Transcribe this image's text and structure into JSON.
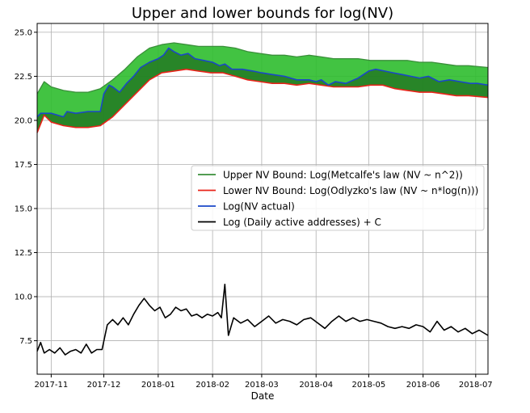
{
  "chart_data": {
    "type": "line",
    "title": "Upper and lower bounds for log(NV)",
    "xlabel": "Date",
    "ylabel": "",
    "xlim": [
      "2017-10-24",
      "2018-07-08"
    ],
    "ylim": [
      5.6,
      25.5
    ],
    "grid": true,
    "legend_position": "center-right",
    "x_ticks": [
      {
        "date": "2017-11-01",
        "label": "2017-11"
      },
      {
        "date": "2017-12-01",
        "label": "2017-12"
      },
      {
        "date": "2018-01-01",
        "label": "2018-01"
      },
      {
        "date": "2018-02-01",
        "label": "2018-02"
      },
      {
        "date": "2018-03-01",
        "label": "2018-03"
      },
      {
        "date": "2018-04-01",
        "label": "2018-04"
      },
      {
        "date": "2018-05-01",
        "label": "2018-05"
      },
      {
        "date": "2018-06-01",
        "label": "2018-06"
      },
      {
        "date": "2018-07-01",
        "label": "2018-07"
      }
    ],
    "y_ticks": [
      {
        "value": 7.5,
        "label": "7.5"
      },
      {
        "value": 10.0,
        "label": "10.0"
      },
      {
        "value": 12.5,
        "label": "12.5"
      },
      {
        "value": 15.0,
        "label": "15.0"
      },
      {
        "value": 17.5,
        "label": "17.5"
      },
      {
        "value": 20.0,
        "label": "20.0"
      },
      {
        "value": 22.5,
        "label": "22.5"
      },
      {
        "value": 25.0,
        "label": "25.0"
      }
    ],
    "series": [
      {
        "name": "Upper NV Bound: Log(Metcalfe's law (NV ~ n^2))",
        "color": "#3a8f3a",
        "fill_color": "#2ebd2e",
        "x": [
          "2017-10-24",
          "2017-10-28",
          "2017-11-01",
          "2017-11-08",
          "2017-11-15",
          "2017-11-22",
          "2017-11-29",
          "2017-12-06",
          "2017-12-13",
          "2017-12-20",
          "2017-12-27",
          "2018-01-03",
          "2018-01-10",
          "2018-01-17",
          "2018-01-24",
          "2018-01-31",
          "2018-02-07",
          "2018-02-14",
          "2018-02-21",
          "2018-02-28",
          "2018-03-07",
          "2018-03-14",
          "2018-03-21",
          "2018-03-28",
          "2018-04-04",
          "2018-04-11",
          "2018-04-18",
          "2018-04-25",
          "2018-05-02",
          "2018-05-09",
          "2018-05-16",
          "2018-05-23",
          "2018-05-30",
          "2018-06-06",
          "2018-06-13",
          "2018-06-20",
          "2018-06-27",
          "2018-07-08"
        ],
        "values": [
          21.5,
          22.2,
          21.9,
          21.7,
          21.6,
          21.6,
          21.8,
          22.3,
          22.9,
          23.6,
          24.1,
          24.3,
          24.4,
          24.3,
          24.2,
          24.2,
          24.2,
          24.1,
          23.9,
          23.8,
          23.7,
          23.7,
          23.6,
          23.7,
          23.6,
          23.5,
          23.5,
          23.5,
          23.4,
          23.4,
          23.4,
          23.4,
          23.3,
          23.3,
          23.2,
          23.1,
          23.1,
          23.0
        ]
      },
      {
        "name": "Lower NV Bound: Log(Odlyzko's law (NV ~ n*log(n)))",
        "color": "#e8241a",
        "x": [
          "2017-10-24",
          "2017-10-28",
          "2017-11-01",
          "2017-11-08",
          "2017-11-15",
          "2017-11-22",
          "2017-11-29",
          "2017-12-06",
          "2017-12-13",
          "2017-12-20",
          "2017-12-27",
          "2018-01-03",
          "2018-01-10",
          "2018-01-17",
          "2018-01-24",
          "2018-01-31",
          "2018-02-07",
          "2018-02-14",
          "2018-02-21",
          "2018-02-28",
          "2018-03-07",
          "2018-03-14",
          "2018-03-21",
          "2018-03-28",
          "2018-04-04",
          "2018-04-11",
          "2018-04-18",
          "2018-04-25",
          "2018-05-02",
          "2018-05-09",
          "2018-05-16",
          "2018-05-23",
          "2018-05-30",
          "2018-06-06",
          "2018-06-13",
          "2018-06-20",
          "2018-06-27",
          "2018-07-08"
        ],
        "values": [
          19.3,
          20.3,
          19.9,
          19.7,
          19.6,
          19.6,
          19.7,
          20.2,
          20.9,
          21.6,
          22.3,
          22.7,
          22.8,
          22.9,
          22.8,
          22.7,
          22.7,
          22.5,
          22.3,
          22.2,
          22.1,
          22.1,
          22.0,
          22.1,
          22.0,
          21.9,
          21.9,
          21.9,
          22.0,
          22.0,
          21.8,
          21.7,
          21.6,
          21.6,
          21.5,
          21.4,
          21.4,
          21.3
        ]
      },
      {
        "name": "Log(NV actual)",
        "color": "#1a47c8",
        "x": [
          "2017-10-24",
          "2017-10-26",
          "2017-11-01",
          "2017-11-08",
          "2017-11-10",
          "2017-11-15",
          "2017-11-22",
          "2017-11-29",
          "2017-12-01",
          "2017-12-04",
          "2017-12-06",
          "2017-12-10",
          "2017-12-14",
          "2017-12-18",
          "2017-12-22",
          "2017-12-27",
          "2018-01-01",
          "2018-01-04",
          "2018-01-07",
          "2018-01-10",
          "2018-01-14",
          "2018-01-18",
          "2018-01-22",
          "2018-01-27",
          "2018-02-01",
          "2018-02-05",
          "2018-02-08",
          "2018-02-12",
          "2018-02-18",
          "2018-02-24",
          "2018-03-01",
          "2018-03-07",
          "2018-03-14",
          "2018-03-21",
          "2018-03-28",
          "2018-04-01",
          "2018-04-04",
          "2018-04-08",
          "2018-04-12",
          "2018-04-18",
          "2018-04-25",
          "2018-05-01",
          "2018-05-05",
          "2018-05-10",
          "2018-05-15",
          "2018-05-20",
          "2018-05-25",
          "2018-05-30",
          "2018-06-04",
          "2018-06-10",
          "2018-06-16",
          "2018-06-22",
          "2018-06-28",
          "2018-07-02",
          "2018-07-08"
        ],
        "values": [
          20.2,
          20.4,
          20.4,
          20.2,
          20.5,
          20.4,
          20.5,
          20.5,
          21.5,
          22.0,
          21.9,
          21.6,
          22.1,
          22.5,
          23.0,
          23.3,
          23.5,
          23.7,
          24.1,
          23.9,
          23.7,
          23.8,
          23.5,
          23.4,
          23.3,
          23.1,
          23.2,
          22.9,
          22.9,
          22.8,
          22.7,
          22.6,
          22.5,
          22.3,
          22.3,
          22.2,
          22.3,
          22.0,
          22.2,
          22.1,
          22.4,
          22.8,
          22.9,
          22.8,
          22.7,
          22.6,
          22.5,
          22.4,
          22.5,
          22.2,
          22.3,
          22.2,
          22.1,
          22.1,
          22.0
        ]
      },
      {
        "name": "Log (Daily active addresses) + C",
        "color": "#000000",
        "x": [
          "2017-10-24",
          "2017-10-26",
          "2017-10-28",
          "2017-10-31",
          "2017-11-03",
          "2017-11-06",
          "2017-11-09",
          "2017-11-12",
          "2017-11-15",
          "2017-11-18",
          "2017-11-21",
          "2017-11-24",
          "2017-11-27",
          "2017-11-30",
          "2017-12-03",
          "2017-12-06",
          "2017-12-09",
          "2017-12-12",
          "2017-12-15",
          "2017-12-18",
          "2017-12-21",
          "2017-12-24",
          "2017-12-27",
          "2017-12-30",
          "2018-01-02",
          "2018-01-05",
          "2018-01-08",
          "2018-01-11",
          "2018-01-14",
          "2018-01-17",
          "2018-01-20",
          "2018-01-23",
          "2018-01-26",
          "2018-01-29",
          "2018-02-01",
          "2018-02-04",
          "2018-02-06",
          "2018-02-08",
          "2018-02-10",
          "2018-02-13",
          "2018-02-17",
          "2018-02-21",
          "2018-02-25",
          "2018-03-01",
          "2018-03-05",
          "2018-03-09",
          "2018-03-13",
          "2018-03-17",
          "2018-03-21",
          "2018-03-25",
          "2018-03-29",
          "2018-04-02",
          "2018-04-06",
          "2018-04-10",
          "2018-04-14",
          "2018-04-18",
          "2018-04-22",
          "2018-04-26",
          "2018-04-30",
          "2018-05-04",
          "2018-05-08",
          "2018-05-12",
          "2018-05-16",
          "2018-05-20",
          "2018-05-24",
          "2018-05-28",
          "2018-06-01",
          "2018-06-05",
          "2018-06-09",
          "2018-06-13",
          "2018-06-17",
          "2018-06-21",
          "2018-06-25",
          "2018-06-29",
          "2018-07-03",
          "2018-07-08"
        ],
        "values": [
          6.9,
          7.4,
          6.8,
          7.0,
          6.8,
          7.1,
          6.7,
          6.9,
          7.0,
          6.8,
          7.3,
          6.8,
          7.0,
          7.0,
          8.4,
          8.7,
          8.4,
          8.8,
          8.4,
          9.0,
          9.5,
          9.9,
          9.5,
          9.2,
          9.4,
          8.8,
          9.0,
          9.4,
          9.2,
          9.3,
          8.9,
          9.0,
          8.8,
          9.0,
          8.9,
          9.1,
          8.8,
          10.7,
          7.8,
          8.8,
          8.5,
          8.7,
          8.3,
          8.6,
          8.9,
          8.5,
          8.7,
          8.6,
          8.4,
          8.7,
          8.8,
          8.5,
          8.2,
          8.6,
          8.9,
          8.6,
          8.8,
          8.6,
          8.7,
          8.6,
          8.5,
          8.3,
          8.2,
          8.3,
          8.2,
          8.4,
          8.3,
          8.0,
          8.6,
          8.1,
          8.3,
          8.0,
          8.2,
          7.9,
          8.1,
          7.8
        ]
      }
    ]
  }
}
